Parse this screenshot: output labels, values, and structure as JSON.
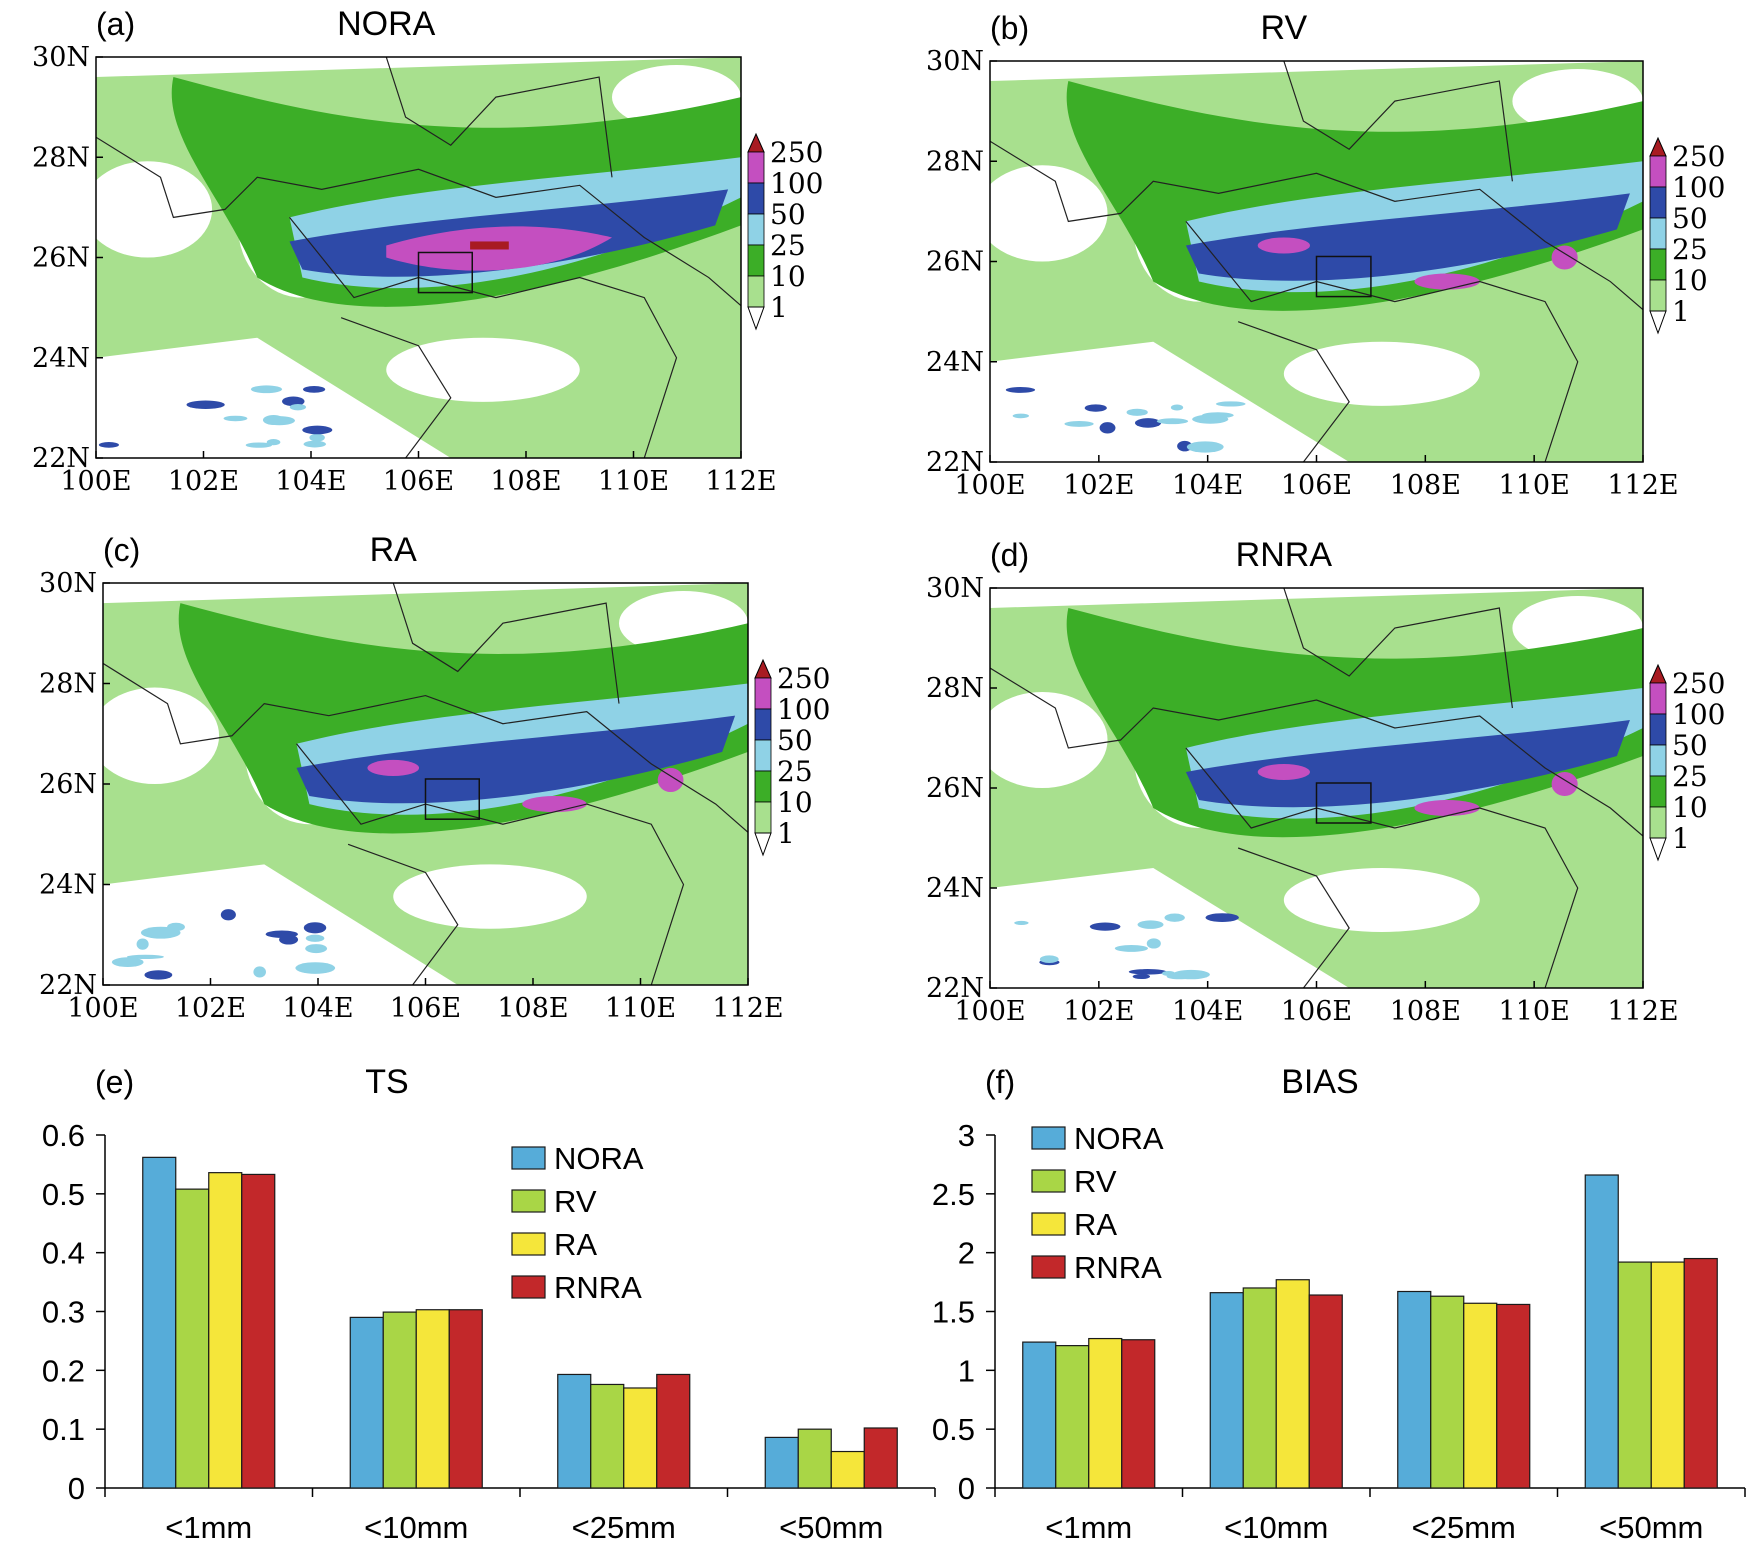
{
  "maps": [
    {
      "letter": "(a)",
      "title": "NORA",
      "lat_ticks": [
        "30N",
        "28N",
        "26N",
        "24N",
        "22N"
      ],
      "lon_ticks": [
        "100E",
        "102E",
        "104E",
        "106E",
        "108E",
        "110E",
        "112E"
      ],
      "rain_core": "strong",
      "box_lon": [
        106.0,
        107.0
      ],
      "box_lat": [
        25.3,
        26.1
      ]
    },
    {
      "letter": "(b)",
      "title": "RV",
      "lat_ticks": [
        "30N",
        "28N",
        "26N",
        "24N",
        "22N"
      ],
      "lon_ticks": [
        "100E",
        "102E",
        "104E",
        "106E",
        "108E",
        "110E",
        "112E"
      ],
      "rain_core": "moderate",
      "box_lon": [
        106.0,
        107.0
      ],
      "box_lat": [
        25.3,
        26.1
      ]
    },
    {
      "letter": "(c)",
      "title": "RA",
      "lat_ticks": [
        "30N",
        "28N",
        "26N",
        "24N",
        "22N"
      ],
      "lon_ticks": [
        "100E",
        "102E",
        "104E",
        "106E",
        "108E",
        "110E",
        "112E"
      ],
      "rain_core": "moderate",
      "box_lon": [
        106.0,
        107.0
      ],
      "box_lat": [
        25.3,
        26.1
      ]
    },
    {
      "letter": "(d)",
      "title": "RNRA",
      "lat_ticks": [
        "30N",
        "28N",
        "26N",
        "24N",
        "22N"
      ],
      "lon_ticks": [
        "100E",
        "102E",
        "104E",
        "106E",
        "108E",
        "110E",
        "112E"
      ],
      "rain_core": "moderate",
      "box_lon": [
        106.0,
        107.0
      ],
      "box_lat": [
        25.3,
        26.1
      ]
    }
  ],
  "colorbar": {
    "labels": [
      "250",
      "100",
      "50",
      "25",
      "10",
      "1"
    ],
    "colors": [
      "#a81b22",
      "#c44fc0",
      "#2e4aa8",
      "#8fd2e6",
      "#3cae27",
      "#a8e08e",
      "#ffffff"
    ]
  },
  "chart_data": [
    {
      "type": "bar",
      "letter": "(e)",
      "title": "TS",
      "categories": [
        "<1mm",
        "<10mm",
        "<25mm",
        "<50mm"
      ],
      "ylim": [
        0,
        0.6
      ],
      "yticks": [
        "0",
        "0.1",
        "0.2",
        "0.3",
        "0.4",
        "0.5",
        "0.6"
      ],
      "legend_position": "top-right",
      "series": [
        {
          "name": "NORA",
          "color": "#56acd9",
          "values": [
            0.562,
            0.29,
            0.193,
            0.086
          ]
        },
        {
          "name": "RV",
          "color": "#a9d646",
          "values": [
            0.508,
            0.299,
            0.176,
            0.1
          ]
        },
        {
          "name": "RA",
          "color": "#f5e63a",
          "values": [
            0.536,
            0.303,
            0.17,
            0.062
          ]
        },
        {
          "name": "RNRA",
          "color": "#c2282a",
          "values": [
            0.533,
            0.303,
            0.193,
            0.102
          ]
        }
      ]
    },
    {
      "type": "bar",
      "letter": "(f)",
      "title": "BIAS",
      "categories": [
        "<1mm",
        "<10mm",
        "<25mm",
        "<50mm"
      ],
      "ylim": [
        0,
        3
      ],
      "yticks": [
        "0",
        "0.5",
        "1",
        "1.5",
        "2",
        "2.5",
        "3"
      ],
      "legend_position": "top-left",
      "series": [
        {
          "name": "NORA",
          "color": "#56acd9",
          "values": [
            1.24,
            1.66,
            1.67,
            2.66
          ]
        },
        {
          "name": "RV",
          "color": "#a9d646",
          "values": [
            1.21,
            1.7,
            1.63,
            1.92
          ]
        },
        {
          "name": "RA",
          "color": "#f5e63a",
          "values": [
            1.27,
            1.77,
            1.57,
            1.92
          ]
        },
        {
          "name": "RNRA",
          "color": "#c2282a",
          "values": [
            1.26,
            1.64,
            1.56,
            1.95
          ]
        }
      ]
    }
  ]
}
